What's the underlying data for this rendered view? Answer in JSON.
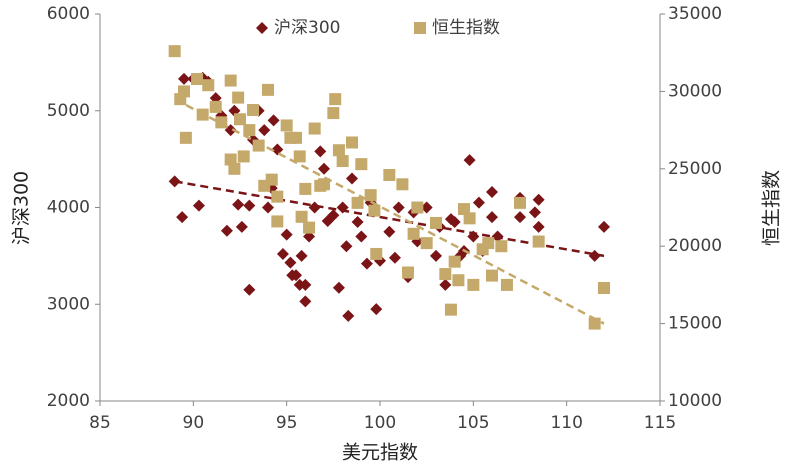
{
  "chart_data": {
    "type": "scatter",
    "x_label": "美元指数",
    "y_label": "沪深300",
    "y2_label": "恒生指数",
    "xlim": [
      85,
      115
    ],
    "xticks": [
      85,
      90,
      95,
      100,
      105,
      110,
      115
    ],
    "ylim": [
      2000,
      6000
    ],
    "yticks": [
      2000,
      3000,
      4000,
      5000,
      6000
    ],
    "y2lim": [
      10000,
      35000
    ],
    "y2ticks": [
      10000,
      15000,
      20000,
      25000,
      30000,
      35000
    ],
    "legend": "top",
    "series": [
      {
        "name": "沪深300",
        "color": "#7b1416",
        "marker": "diamond",
        "x": [
          89.0,
          89.4,
          89.5,
          90.0,
          90.3,
          90.5,
          90.8,
          91.2,
          91.5,
          91.8,
          92.0,
          92.2,
          92.4,
          92.6,
          93.0,
          93.0,
          93.2,
          93.5,
          93.8,
          94.0,
          94.2,
          94.3,
          94.5,
          94.8,
          95.0,
          95.2,
          95.3,
          95.5,
          95.7,
          95.8,
          96.0,
          96.0,
          96.2,
          96.5,
          96.8,
          97.0,
          97.2,
          97.5,
          97.8,
          98.0,
          98.2,
          98.3,
          98.5,
          98.8,
          99.0,
          99.3,
          99.5,
          99.8,
          100.0,
          100.5,
          100.8,
          101.0,
          101.5,
          101.8,
          102.0,
          102.5,
          103.0,
          103.2,
          103.5,
          103.8,
          104.0,
          104.3,
          104.5,
          104.8,
          105.0,
          105.3,
          105.5,
          106.0,
          106.0,
          106.3,
          106.5,
          107.5,
          107.5,
          108.3,
          108.5,
          108.5,
          111.5,
          112.0
        ],
        "values": [
          4270,
          3900,
          5330,
          5330,
          4020,
          5340,
          5300,
          5130,
          4950,
          3760,
          4800,
          5000,
          4030,
          3800,
          4020,
          3150,
          4700,
          5000,
          4800,
          4000,
          4200,
          4900,
          4600,
          3520,
          3720,
          3430,
          3300,
          3300,
          3200,
          3500,
          3030,
          3200,
          3700,
          4000,
          4580,
          4400,
          3860,
          3920,
          3170,
          4000,
          3600,
          2880,
          4300,
          3850,
          3700,
          3420,
          4050,
          2950,
          3450,
          3750,
          3480,
          4000,
          3280,
          3950,
          3650,
          4000,
          3500,
          3800,
          3200,
          3880,
          3850,
          3500,
          3550,
          4490,
          3700,
          4050,
          3550,
          4160,
          3900,
          3700,
          3600,
          3900,
          4100,
          3950,
          4080,
          3800,
          3500,
          3800
        ],
        "trendline": {
          "x": [
            89,
            112
          ],
          "values": [
            4270,
            3500
          ]
        }
      },
      {
        "name": "恒生指数",
        "color": "#c4a96a",
        "marker": "square",
        "axis": "y2",
        "x": [
          89.0,
          89.3,
          89.5,
          89.6,
          90.2,
          90.5,
          90.8,
          91.2,
          91.5,
          92.0,
          92.0,
          92.2,
          92.4,
          92.5,
          92.7,
          93.0,
          93.2,
          93.5,
          93.8,
          94.0,
          94.2,
          94.5,
          94.5,
          95.0,
          95.2,
          95.5,
          95.7,
          95.8,
          96.0,
          96.2,
          96.5,
          96.8,
          97.0,
          97.5,
          97.6,
          97.8,
          98.0,
          98.5,
          98.8,
          99.0,
          99.5,
          99.7,
          99.8,
          100.5,
          101.2,
          101.5,
          101.8,
          102.0,
          102.5,
          103.0,
          103.5,
          103.8,
          104.0,
          104.2,
          104.5,
          104.8,
          105.0,
          105.5,
          105.8,
          106.0,
          106.5,
          106.8,
          107.5,
          108.5,
          111.5,
          112.0
        ],
        "values": [
          32600,
          29500,
          30000,
          27000,
          30800,
          28500,
          30400,
          29000,
          28000,
          30700,
          25600,
          25000,
          29600,
          28200,
          25800,
          27500,
          28800,
          26500,
          23900,
          30100,
          24300,
          21600,
          23200,
          27800,
          27000,
          27000,
          25800,
          21900,
          23700,
          21200,
          27600,
          23900,
          24000,
          28600,
          29500,
          26200,
          25500,
          26700,
          22800,
          25300,
          23300,
          22300,
          19500,
          24600,
          24000,
          18300,
          20800,
          22500,
          20200,
          21500,
          18200,
          15900,
          19000,
          17800,
          22400,
          21800,
          17500,
          19800,
          20200,
          18100,
          20000,
          17500,
          22800,
          20300,
          15000,
          17300
        ],
        "trendline": {
          "x": [
            89,
            112
          ],
          "values": [
            29500,
            15000
          ]
        }
      }
    ]
  }
}
